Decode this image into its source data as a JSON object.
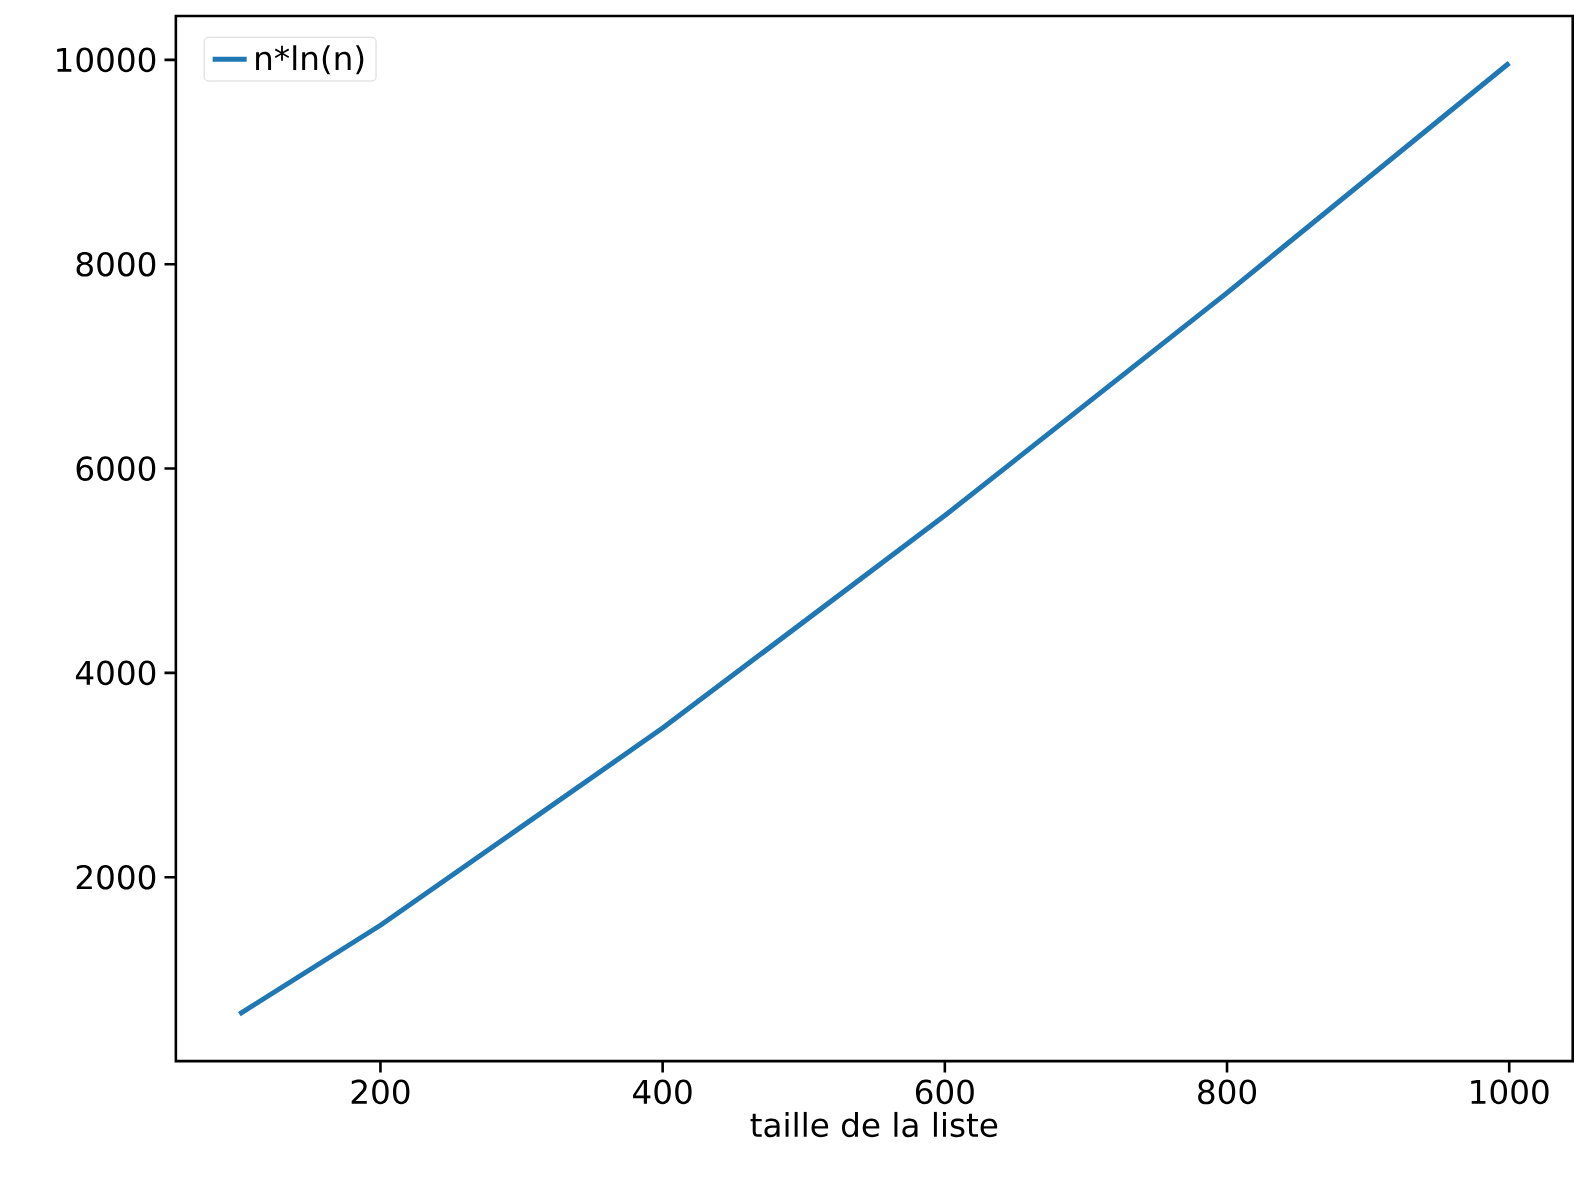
{
  "chart_data": {
    "type": "line",
    "xlabel": "taille de la liste",
    "x": [
      100,
      200,
      400,
      600,
      800,
      1000
    ],
    "series": [
      {
        "name": "n*ln(n)",
        "color": "#1f77b4",
        "values": [
          660,
          1530,
          3460,
          5540,
          7720,
          9970
        ]
      }
    ],
    "xlim": [
      55,
      1045
    ],
    "ylim": [
      200,
      10430
    ],
    "xticks": [
      200,
      400,
      600,
      800,
      1000
    ],
    "yticks": [
      2000,
      4000,
      6000,
      8000,
      10000
    ],
    "grid": false,
    "legend": "top left",
    "line_style": "solid",
    "marker": "none"
  }
}
